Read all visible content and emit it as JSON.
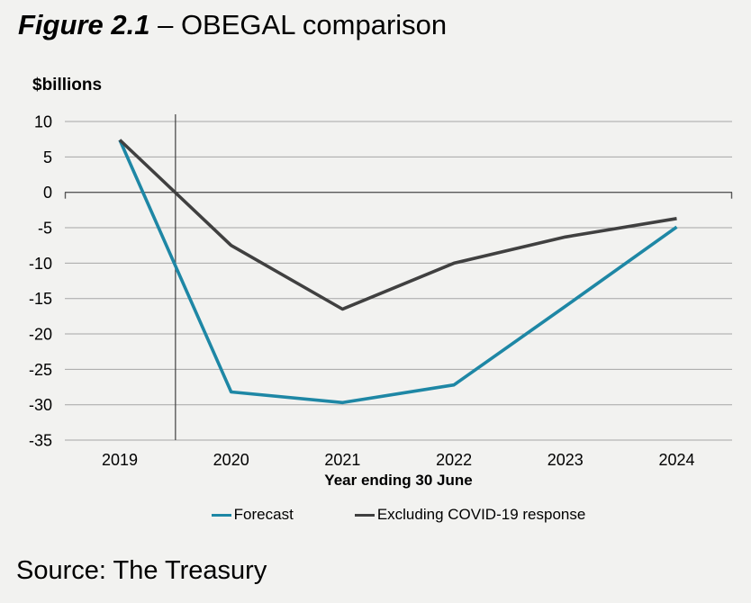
{
  "title": {
    "figure_label": "Figure 2.1",
    "separator": "–",
    "text": "OBEGAL comparison"
  },
  "chart_data": {
    "type": "line",
    "title": "Figure 2.1 – OBEGAL comparison",
    "unit_label": "$billions",
    "xlabel": "Year ending 30 June",
    "ylabel": "$billions",
    "categories": [
      "2019",
      "2020",
      "2021",
      "2022",
      "2023",
      "2024"
    ],
    "series": [
      {
        "name": "Forecast",
        "color": "#1e87a5",
        "values": [
          7.4,
          -28.2,
          -29.7,
          -27.2,
          -16.1,
          -4.9
        ]
      },
      {
        "name": "Excluding COVID-19 response",
        "color": "#404040",
        "values": [
          7.4,
          -7.5,
          -16.5,
          -10.0,
          -6.3,
          -3.7
        ]
      }
    ],
    "ylim": [
      -35,
      10
    ],
    "yticks": [
      10,
      5,
      0,
      -5,
      -10,
      -15,
      -20,
      -25,
      -30,
      -35
    ],
    "grid": true,
    "legend_position": "bottom",
    "vertical_divider_at_x": 2019.5
  },
  "source": "Source: The Treasury",
  "colors": {
    "background": "#f2f2f0",
    "gridline": "#a6a6a6",
    "zero_axis": "#595959",
    "divider_line": "#404040",
    "text": "#000000"
  }
}
